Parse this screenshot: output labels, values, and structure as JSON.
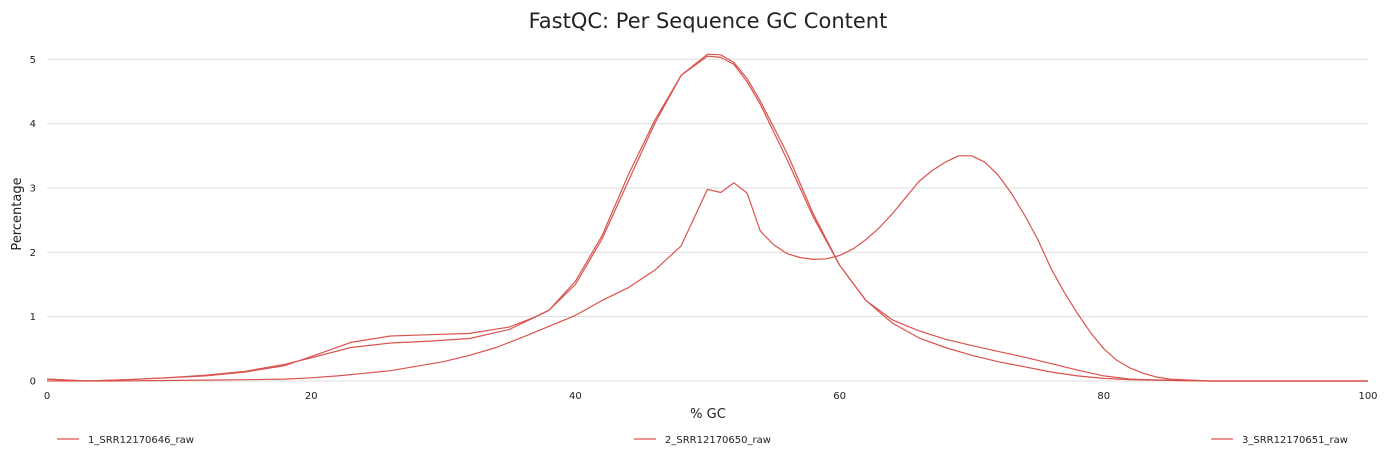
{
  "chart_data": {
    "type": "line",
    "title": "FastQC: Per Sequence GC Content",
    "xlabel": "% GC",
    "ylabel": "Percentage",
    "xlim": [
      0,
      100
    ],
    "ylim": [
      0,
      5.3
    ],
    "xticks": [
      0,
      20,
      40,
      60,
      80,
      100
    ],
    "yticks": [
      0,
      1,
      2,
      3,
      4,
      5
    ],
    "grid": true,
    "legend_position": "bottom",
    "series": [
      {
        "name": "1_SRR12170646_raw",
        "color": "#d9534f",
        "x": [
          0,
          3,
          6,
          9,
          12,
          15,
          18,
          20,
          23,
          26,
          29,
          32,
          35,
          37,
          38,
          40,
          42,
          44,
          46,
          48,
          50,
          51,
          52,
          53,
          54,
          56,
          58,
          60,
          62,
          64,
          66,
          68,
          70,
          72,
          74,
          76,
          78,
          80,
          82,
          85,
          88,
          90,
          95,
          100
        ],
        "y": [
          0.03,
          0.0,
          0.02,
          0.05,
          0.09,
          0.15,
          0.26,
          0.36,
          0.52,
          0.59,
          0.62,
          0.66,
          0.8,
          1.0,
          1.1,
          1.5,
          2.2,
          3.1,
          4.0,
          4.75,
          5.05,
          5.03,
          4.92,
          4.65,
          4.3,
          3.45,
          2.55,
          1.8,
          1.25,
          0.9,
          0.67,
          0.52,
          0.4,
          0.3,
          0.22,
          0.14,
          0.08,
          0.04,
          0.02,
          0.01,
          0.0,
          0.0,
          0.0,
          0.0
        ]
      },
      {
        "name": "2_SRR12170650_raw",
        "color": "#d9534f",
        "x": [
          0,
          3,
          6,
          9,
          12,
          15,
          18,
          20,
          23,
          26,
          29,
          32,
          35,
          37,
          38,
          40,
          42,
          44,
          46,
          48,
          50,
          51,
          52,
          53,
          54,
          56,
          58,
          60,
          62,
          64,
          66,
          68,
          70,
          72,
          74,
          76,
          78,
          80,
          82,
          85,
          88,
          90,
          95,
          100
        ],
        "y": [
          0.03,
          0.0,
          0.02,
          0.05,
          0.08,
          0.14,
          0.24,
          0.38,
          0.6,
          0.7,
          0.72,
          0.74,
          0.84,
          1.0,
          1.1,
          1.55,
          2.25,
          3.2,
          4.05,
          4.75,
          5.08,
          5.07,
          4.95,
          4.7,
          4.35,
          3.55,
          2.6,
          1.8,
          1.25,
          0.95,
          0.78,
          0.65,
          0.55,
          0.46,
          0.37,
          0.27,
          0.17,
          0.08,
          0.03,
          0.01,
          0.0,
          0.0,
          0.0,
          0.0
        ]
      },
      {
        "name": "3_SRR12170651_raw",
        "color": "#d9534f",
        "x": [
          0,
          5,
          10,
          15,
          18,
          20,
          22,
          24,
          26,
          28,
          30,
          32,
          34,
          36,
          38,
          40,
          42,
          44,
          46,
          48,
          50,
          51,
          52,
          53,
          54,
          55,
          56,
          57,
          58,
          59,
          60,
          61,
          62,
          63,
          64,
          65,
          66,
          67,
          68,
          69,
          70,
          71,
          72,
          73,
          74,
          75,
          76,
          77,
          78,
          79,
          80,
          81,
          82,
          83,
          84,
          85,
          86,
          88,
          90,
          95,
          100
        ],
        "y": [
          0.0,
          0.0,
          0.01,
          0.02,
          0.03,
          0.05,
          0.08,
          0.12,
          0.16,
          0.23,
          0.3,
          0.4,
          0.52,
          0.68,
          0.85,
          1.02,
          1.25,
          1.45,
          1.72,
          2.1,
          2.98,
          2.93,
          3.08,
          2.92,
          2.33,
          2.12,
          1.98,
          1.92,
          1.89,
          1.9,
          1.95,
          2.05,
          2.2,
          2.38,
          2.6,
          2.85,
          3.1,
          3.27,
          3.4,
          3.5,
          3.5,
          3.4,
          3.2,
          2.92,
          2.58,
          2.2,
          1.75,
          1.38,
          1.05,
          0.75,
          0.5,
          0.32,
          0.2,
          0.12,
          0.06,
          0.03,
          0.02,
          0.0,
          0.0,
          0.0,
          0.0
        ]
      }
    ]
  }
}
